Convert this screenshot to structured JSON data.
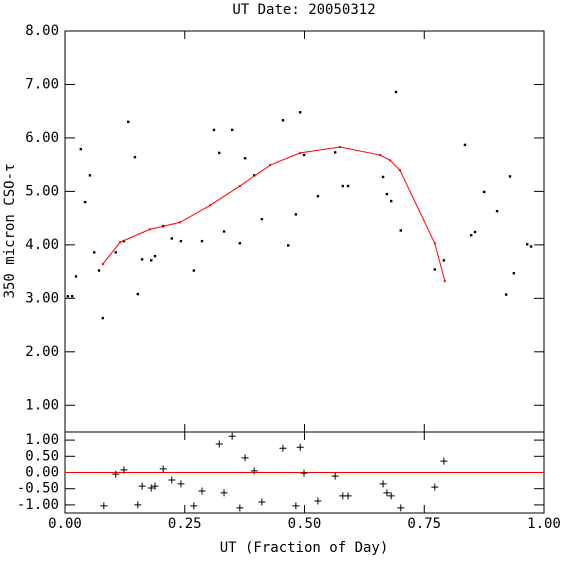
{
  "chart_data": [
    {
      "type": "scatter",
      "title": "UT Date: 20050312",
      "y_label": "350 micron CSO-τ",
      "xlim": [
        0,
        1
      ],
      "ylim": [
        0.5,
        8
      ],
      "yticks": [
        {
          "value": 1,
          "label": "1.00"
        },
        {
          "value": 2,
          "label": "2.00"
        },
        {
          "value": 3,
          "label": "3.00"
        },
        {
          "value": 4,
          "label": "4.00"
        },
        {
          "value": 5,
          "label": "5.00"
        },
        {
          "value": 6,
          "label": "6.00"
        },
        {
          "value": 7,
          "label": "7.00"
        },
        {
          "value": 8,
          "label": "8.00"
        }
      ],
      "series": [
        {
          "marker": "dot",
          "color": "#000000",
          "x": [
            0.006,
            0.015,
            0.023,
            0.033,
            0.042,
            0.052,
            0.061,
            0.071,
            0.079,
            0.106,
            0.123,
            0.132,
            0.146,
            0.152,
            0.161,
            0.18,
            0.188,
            0.205,
            0.223,
            0.242,
            0.269,
            0.286,
            0.311,
            0.322,
            0.332,
            0.349,
            0.365,
            0.376,
            0.395,
            0.411,
            0.455,
            0.466,
            0.482,
            0.491,
            0.499,
            0.528,
            0.564,
            0.58,
            0.591,
            0.664,
            0.672,
            0.681,
            0.691,
            0.701,
            0.772,
            0.791,
            0.835,
            0.848,
            0.856,
            0.875,
            0.902,
            0.921,
            0.929,
            0.937,
            0.965,
            0.973
          ],
          "values": [
            3.04,
            3.04,
            3.41,
            5.79,
            4.8,
            5.3,
            3.86,
            3.52,
            2.63,
            3.86,
            4.07,
            6.3,
            5.64,
            3.08,
            3.73,
            3.71,
            3.79,
            4.35,
            4.12,
            4.07,
            3.52,
            4.07,
            6.15,
            5.72,
            4.25,
            6.15,
            4.03,
            5.62,
            5.3,
            4.48,
            6.33,
            3.99,
            4.57,
            6.48,
            5.68,
            4.91,
            5.73,
            5.1,
            5.1,
            5.27,
            4.95,
            4.82,
            6.86,
            4.27,
            3.54,
            3.71,
            5.87,
            4.18,
            4.24,
            4.99,
            4.63,
            3.07,
            5.28,
            3.47,
            4.01,
            3.97
          ]
        },
        {
          "marker": "line",
          "color": "#ff0000",
          "x": [
            0.079,
            0.115,
            0.177,
            0.24,
            0.303,
            0.365,
            0.428,
            0.491,
            0.574,
            0.658,
            0.679,
            0.699,
            0.772,
            0.793
          ],
          "values": [
            3.64,
            4.05,
            4.29,
            4.42,
            4.74,
            5.1,
            5.49,
            5.72,
            5.83,
            5.68,
            5.58,
            5.4,
            4.03,
            3.32
          ]
        }
      ]
    },
    {
      "type": "scatter",
      "x_label": "UT (Fraction of Day)",
      "xlim": [
        0,
        1
      ],
      "ylim": [
        -1.25,
        1.25
      ],
      "xticks": [
        {
          "value": 0,
          "label": "0.00"
        },
        {
          "value": 0.25,
          "label": "0.25"
        },
        {
          "value": 0.5,
          "label": "0.50"
        },
        {
          "value": 0.75,
          "label": "0.75"
        },
        {
          "value": 1,
          "label": "1.00"
        }
      ],
      "yticks": [
        {
          "value": -1,
          "label": "-1.00"
        },
        {
          "value": -0.5,
          "label": "-0.50"
        },
        {
          "value": 0,
          "label": "0.00"
        },
        {
          "value": 0.5,
          "label": "0.50"
        },
        {
          "value": 1,
          "label": "1.00"
        }
      ],
      "hline": {
        "value": 0,
        "color": "#ff0000"
      },
      "series": [
        {
          "marker": "cross",
          "color": "#000000",
          "x": [
            0.081,
            0.106,
            0.123,
            0.152,
            0.161,
            0.18,
            0.188,
            0.205,
            0.223,
            0.242,
            0.269,
            0.286,
            0.322,
            0.332,
            0.349,
            0.365,
            0.376,
            0.395,
            0.411,
            0.455,
            0.482,
            0.491,
            0.499,
            0.528,
            0.564,
            0.58,
            0.591,
            0.664,
            0.672,
            0.681,
            0.701,
            0.772,
            0.791
          ],
          "values": [
            -1.03,
            -0.05,
            0.08,
            -1.0,
            -0.42,
            -0.48,
            -0.42,
            0.11,
            -0.23,
            -0.35,
            -1.03,
            -0.57,
            0.88,
            -0.63,
            1.12,
            -1.09,
            0.45,
            0.05,
            -0.91,
            0.75,
            -1.03,
            0.78,
            -0.02,
            -0.88,
            -0.11,
            -0.72,
            -0.72,
            -0.35,
            -0.63,
            -0.72,
            -1.09,
            -0.45,
            0.35
          ]
        }
      ]
    }
  ]
}
